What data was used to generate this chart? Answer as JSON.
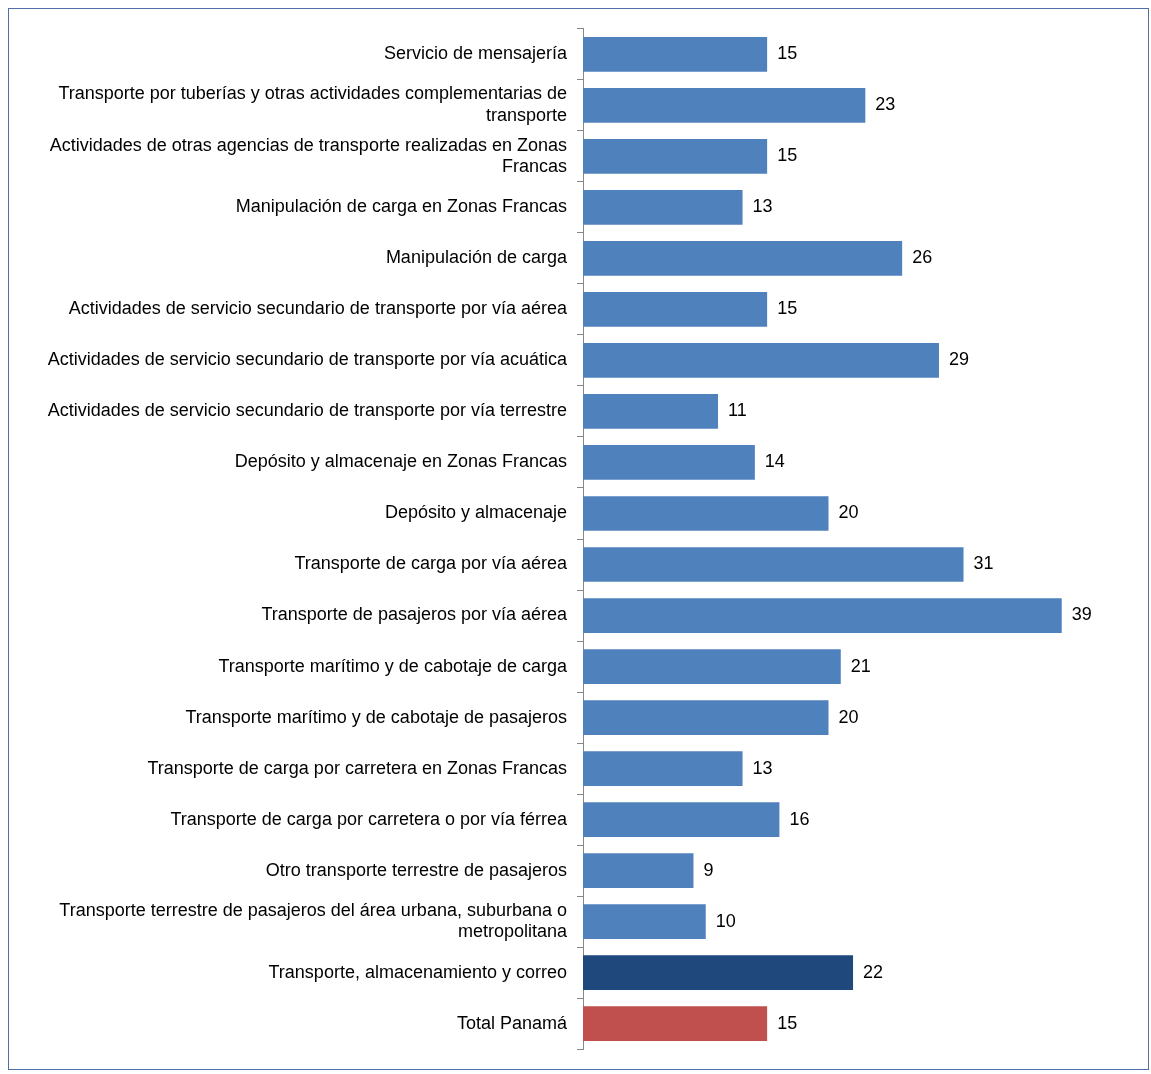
{
  "chart_data": {
    "type": "bar",
    "orientation": "horizontal",
    "data_labels": true,
    "legend": false,
    "categories": [
      "Servicio de mensajería",
      "Transporte por tuberías y otras actividades complementarias de transporte",
      "Actividades de otras agencias de transporte realizadas en Zonas Francas",
      "Manipulación de carga en Zonas Francas",
      "Manipulación de carga",
      "Actividades de servicio secundario de transporte por vía aérea",
      "Actividades de servicio secundario de transporte por vía acuática",
      "Actividades de servicio secundario de transporte por vía terrestre",
      "Depósito y almacenaje en Zonas Francas",
      "Depósito y almacenaje",
      "Transporte de carga por vía aérea",
      "Transporte de pasajeros por vía aérea",
      "Transporte marítimo y de cabotaje de carga",
      "Transporte marítimo y de cabotaje de pasajeros",
      "Transporte de carga por carretera en Zonas Francas",
      "Transporte de carga por carretera o por vía férrea",
      "Otro transporte terrestre de pasajeros",
      "Transporte terrestre de pasajeros del área urbana, suburbana o metropolitana",
      "Transporte, almacenamiento y correo",
      "Total Panamá"
    ],
    "values": [
      15,
      23,
      15,
      13,
      26,
      15,
      29,
      11,
      14,
      20,
      31,
      39,
      21,
      20,
      13,
      16,
      9,
      10,
      22,
      15
    ],
    "colors": [
      "#4f81bd",
      "#4f81bd",
      "#4f81bd",
      "#4f81bd",
      "#4f81bd",
      "#4f81bd",
      "#4f81bd",
      "#4f81bd",
      "#4f81bd",
      "#4f81bd",
      "#4f81bd",
      "#4f81bd",
      "#4f81bd",
      "#4f81bd",
      "#4f81bd",
      "#4f81bd",
      "#4f81bd",
      "#4f81bd",
      "#1f497d",
      "#c0504d"
    ]
  }
}
